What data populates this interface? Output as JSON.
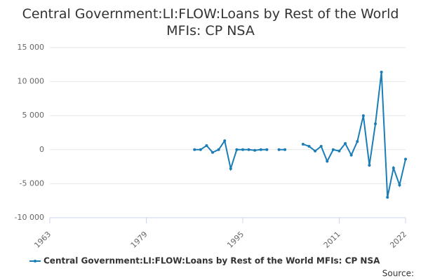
{
  "chart_data": {
    "type": "line",
    "title": "Central Government:LI:FLOW:Loans by Rest of the World MFIs: CP NSA",
    "x": [
      1987,
      1988,
      1989,
      1990,
      1991,
      1992,
      1993,
      1994,
      1995,
      1996,
      1997,
      1998,
      1999,
      2000,
      2001,
      2002,
      2003,
      2004,
      2005,
      2006,
      2007,
      2008,
      2009,
      2010,
      2011,
      2012,
      2013,
      2014,
      2015,
      2016,
      2017,
      2018,
      2019,
      2020,
      2021,
      2022
    ],
    "series": [
      {
        "name": "Central Government:LI:FLOW:Loans by Rest of the World MFIs: CP NSA",
        "color": "#1a7db6",
        "values": [
          0,
          0,
          600,
          -400,
          0,
          1300,
          -2800,
          0,
          0,
          0,
          -100,
          0,
          0,
          null,
          0,
          0,
          null,
          null,
          800,
          500,
          -200,
          500,
          -1700,
          0,
          -200,
          900,
          -800,
          1200,
          5000,
          -2300,
          3800,
          11400,
          -7000,
          -2700,
          -5200,
          -1400
        ]
      }
    ],
    "xlim": [
      1963,
      2022
    ],
    "xticks": [
      1963,
      1979,
      1995,
      2011,
      2022
    ],
    "ylim": [
      -10000,
      15000
    ],
    "yticks": [
      {
        "value": -10000,
        "label": "-10 000"
      },
      {
        "value": -5000,
        "label": "-5 000"
      },
      0,
      {
        "value": 5000,
        "label": "5 000"
      },
      {
        "value": 10000,
        "label": "10 000"
      },
      {
        "value": 15000,
        "label": "15 000"
      }
    ],
    "grid": true,
    "legend": "bottom",
    "source": "Source:"
  }
}
